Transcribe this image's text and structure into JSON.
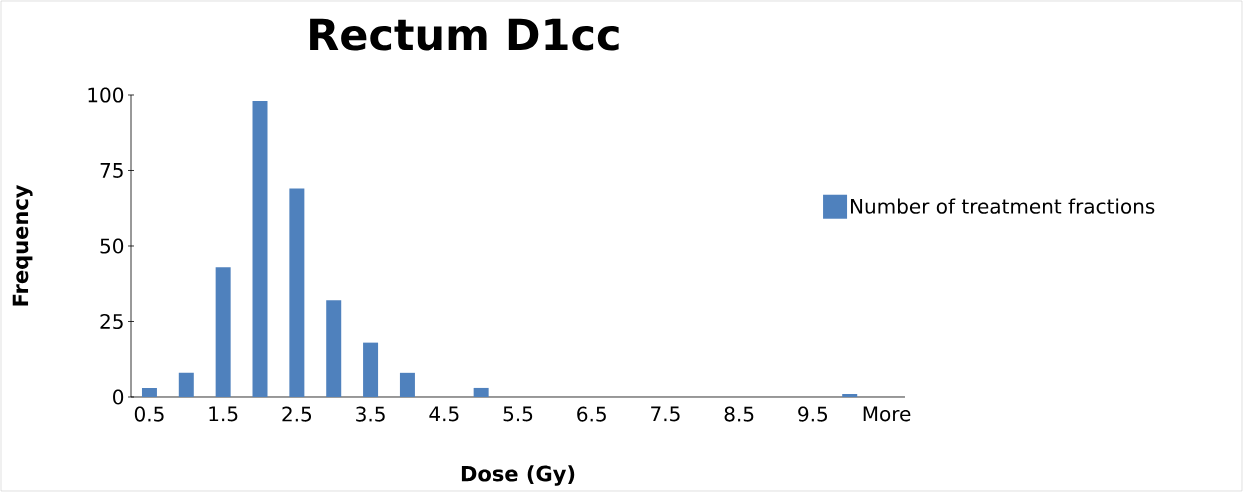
{
  "chart_data": {
    "type": "bar",
    "title": "Rectum D1cc",
    "xlabel": "Dose (Gy)",
    "ylabel": "Frequency",
    "categories": [
      "0.5",
      null,
      "1.5",
      null,
      "2.5",
      null,
      "3.5",
      null,
      "4.5",
      null,
      "5.5",
      null,
      "6.5",
      null,
      "7.5",
      null,
      "8.5",
      null,
      "9.5",
      null,
      "More"
    ],
    "series": [
      {
        "name": "Number of treatment fractions",
        "color": "#4f81bd",
        "values": [
          3,
          8,
          43,
          98,
          69,
          32,
          18,
          8,
          0,
          3,
          0,
          0,
          0,
          0,
          0,
          0,
          0,
          0,
          0,
          1,
          0
        ]
      }
    ],
    "ylim": [
      0,
      100
    ],
    "yticks": [
      0,
      25,
      50,
      75,
      100
    ],
    "grid": false,
    "legend": "right"
  }
}
